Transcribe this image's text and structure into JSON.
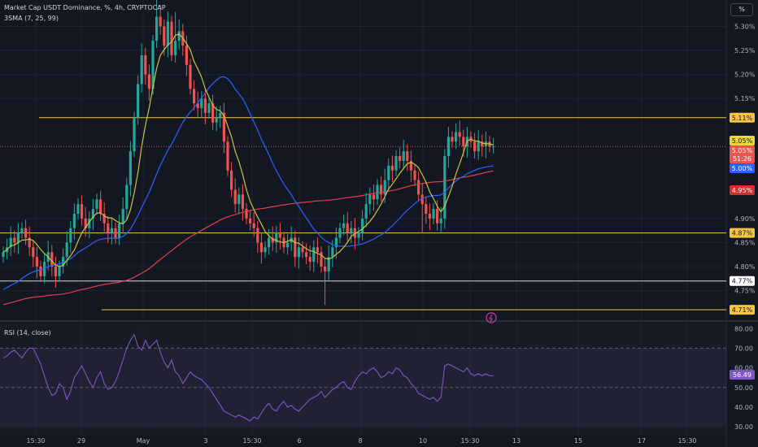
{
  "header": {
    "title": "Market Cap USDT Dominance, %, 4h, CRYPTOCAP",
    "indicator": "3SMA (7, 25, 99)",
    "rsi_label": "RSI (14, close)",
    "scale_button": "%"
  },
  "badges": {
    "price": "5.05%",
    "countdown": "51:26"
  },
  "colors": {
    "background": "#131722",
    "up": "#26a69a",
    "down": "#ef5350",
    "sma7": "#c8c43a",
    "sma25": "#2962ff",
    "sma99": "#e0404a",
    "hline_yellow": "#f5c542",
    "hline_white": "#d1d4dc",
    "rsi_line": "#7e57c2"
  },
  "chart_data": [
    {
      "type": "candlestick",
      "title": "Market Cap USDT Dominance, %, 4h, CRYPTOCAP",
      "y_ticks": [
        "5.30%",
        "5.25%",
        "5.20%",
        "5.15%",
        "4.90%",
        "4.85%",
        "4.80%",
        "4.75%"
      ],
      "ylim": [
        4.69,
        5.355
      ],
      "x_ticks": [
        "15:30",
        "29",
        "May",
        "3",
        "15:30",
        "6",
        "8",
        "10",
        "15:30",
        "13",
        "15",
        "17",
        "15:30"
      ],
      "horizontal_levels": [
        {
          "value": 5.11,
          "label": "5.11%",
          "color": "yellow"
        },
        {
          "value": 4.87,
          "label": "4.87%",
          "color": "yellow"
        },
        {
          "value": 4.77,
          "label": "4.77%",
          "color": "white"
        },
        {
          "value": 4.71,
          "label": "4.71%",
          "color": "yellow"
        }
      ],
      "value_badges": [
        {
          "label": "5.05%",
          "series": "SMA 7"
        },
        {
          "label": "5.00%",
          "series": "SMA 25"
        },
        {
          "label": "4.95%",
          "series": "SMA 99"
        }
      ],
      "closes": [
        4.83,
        4.84,
        4.86,
        4.85,
        4.87,
        4.88,
        4.86,
        4.84,
        4.82,
        4.8,
        4.78,
        4.81,
        4.83,
        4.8,
        4.78,
        4.8,
        4.82,
        4.85,
        4.88,
        4.91,
        4.93,
        4.9,
        4.88,
        4.9,
        4.92,
        4.94,
        4.91,
        4.89,
        4.87,
        4.88,
        4.86,
        4.89,
        4.92,
        4.97,
        5.04,
        5.11,
        5.18,
        5.24,
        5.2,
        5.17,
        5.27,
        5.32,
        5.3,
        5.26,
        5.31,
        5.24,
        5.27,
        5.29,
        5.26,
        5.22,
        5.17,
        5.14,
        5.13,
        5.15,
        5.12,
        5.14,
        5.1,
        5.11,
        5.12,
        5.06,
        5.0,
        4.96,
        4.93,
        4.95,
        4.92,
        4.9,
        4.89,
        4.88,
        4.85,
        4.83,
        4.84,
        4.86,
        4.85,
        4.87,
        4.86,
        4.84,
        4.85,
        4.86,
        4.82,
        4.84,
        4.83,
        4.82,
        4.81,
        4.84,
        4.83,
        4.8,
        4.79,
        4.82,
        4.84,
        4.86,
        4.88,
        4.89,
        4.87,
        4.88,
        4.86,
        4.87,
        4.9,
        4.93,
        4.95,
        4.94,
        4.97,
        4.95,
        4.98,
        5.01,
        5.0,
        5.03,
        5.02,
        5.04,
        5.02,
        5.0,
        4.98,
        4.95,
        4.93,
        4.91,
        4.9,
        4.92,
        4.89,
        4.9,
        5.03,
        5.07,
        5.06,
        5.08,
        5.07,
        5.05,
        5.07,
        5.06,
        5.04,
        5.06,
        5.05,
        5.06,
        5.05,
        5.05
      ],
      "series": [
        {
          "name": "SMA 7",
          "value_label": "5.05%"
        },
        {
          "name": "SMA 25",
          "value_label": "5.00%"
        },
        {
          "name": "SMA 99",
          "value_label": "4.95%"
        }
      ]
    },
    {
      "type": "line",
      "title": "RSI (14, close)",
      "y_ticks": [
        "80.00",
        "70.00",
        "60.00",
        "50.00",
        "40.00",
        "30.00"
      ],
      "ylim": [
        28,
        83
      ],
      "bands": [
        70,
        50
      ],
      "current_label": "56.49",
      "values": [
        65,
        66,
        68,
        69,
        67,
        65,
        68,
        70,
        70,
        66,
        62,
        56,
        50,
        46,
        47,
        52,
        50,
        44,
        48,
        55,
        58,
        61,
        57,
        53,
        50,
        55,
        58,
        52,
        49,
        50,
        53,
        58,
        64,
        70,
        74,
        77,
        71,
        69,
        74,
        70,
        72,
        74,
        68,
        63,
        60,
        64,
        58,
        56,
        52,
        55,
        58,
        56,
        55,
        54,
        52,
        50,
        47,
        44,
        41,
        38,
        37,
        36,
        35,
        36,
        35,
        34,
        33,
        35,
        34,
        37,
        40,
        42,
        39,
        38,
        41,
        43,
        40,
        41,
        39,
        38,
        40,
        42,
        44,
        45,
        46,
        48,
        45,
        47,
        49,
        50,
        52,
        53,
        50,
        49,
        53,
        56,
        58,
        57,
        59,
        60,
        58,
        55,
        56,
        58,
        57,
        60,
        59,
        56,
        55,
        52,
        50,
        47,
        46,
        45,
        44,
        45,
        43,
        45,
        61,
        62,
        61,
        60,
        59,
        58,
        60,
        57,
        56,
        57,
        56,
        57,
        56,
        56
      ]
    }
  ]
}
